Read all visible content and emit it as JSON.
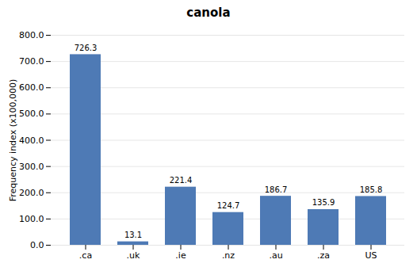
{
  "chart_data": {
    "type": "bar",
    "title": "canola",
    "categories": [
      ".ca",
      ".uk",
      ".ie",
      ".nz",
      ".au",
      ".za",
      "US"
    ],
    "values": [
      726.3,
      13.1,
      221.4,
      124.7,
      186.7,
      135.9,
      185.8
    ],
    "color": "#4e7ab5",
    "ylabel": "Frequency index (x100,000)",
    "ylim": [
      0,
      800
    ],
    "yticks": [
      {
        "value": 0,
        "label": "0.0"
      },
      {
        "value": 100,
        "label": "100.0"
      },
      {
        "value": 200,
        "label": "200.0"
      },
      {
        "value": 300,
        "label": "300.0"
      },
      {
        "value": 400,
        "label": "400.0"
      },
      {
        "value": 500,
        "label": "500.0"
      },
      {
        "value": 600,
        "label": "600.0"
      },
      {
        "value": 700,
        "label": "700.0"
      },
      {
        "value": 800,
        "label": "800.0"
      }
    ],
    "grid": true,
    "data_labels": true
  }
}
